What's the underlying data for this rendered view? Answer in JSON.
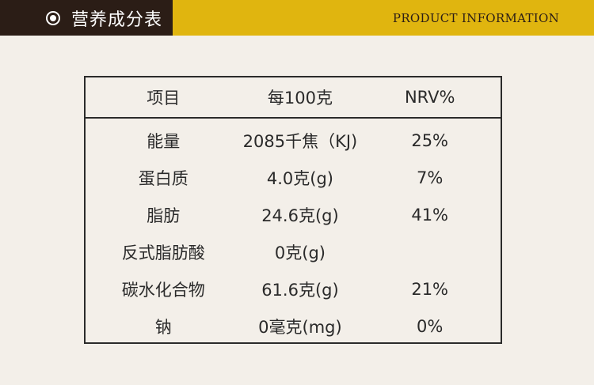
{
  "header": {
    "title": "营养成分表",
    "subtitle": "PRODUCT INFORMATION"
  },
  "table": {
    "headers": [
      "项目",
      "每100克",
      "NRV%"
    ],
    "rows": [
      [
        "能量",
        "2085千焦（KJ)",
        "25%"
      ],
      [
        "蛋白质",
        "4.0克(g)",
        "7%"
      ],
      [
        "脂肪",
        "24.6克(g)",
        "41%"
      ],
      [
        "反式脂肪酸",
        "0克(g)",
        ""
      ],
      [
        "碳水化合物",
        "61.6克(g)",
        "21%"
      ],
      [
        "钠",
        "0毫克(mg)",
        "0%"
      ]
    ]
  },
  "colors": {
    "header_dark": "#2b1d16",
    "header_gold": "#e0b50f",
    "background": "#f3efe9"
  }
}
